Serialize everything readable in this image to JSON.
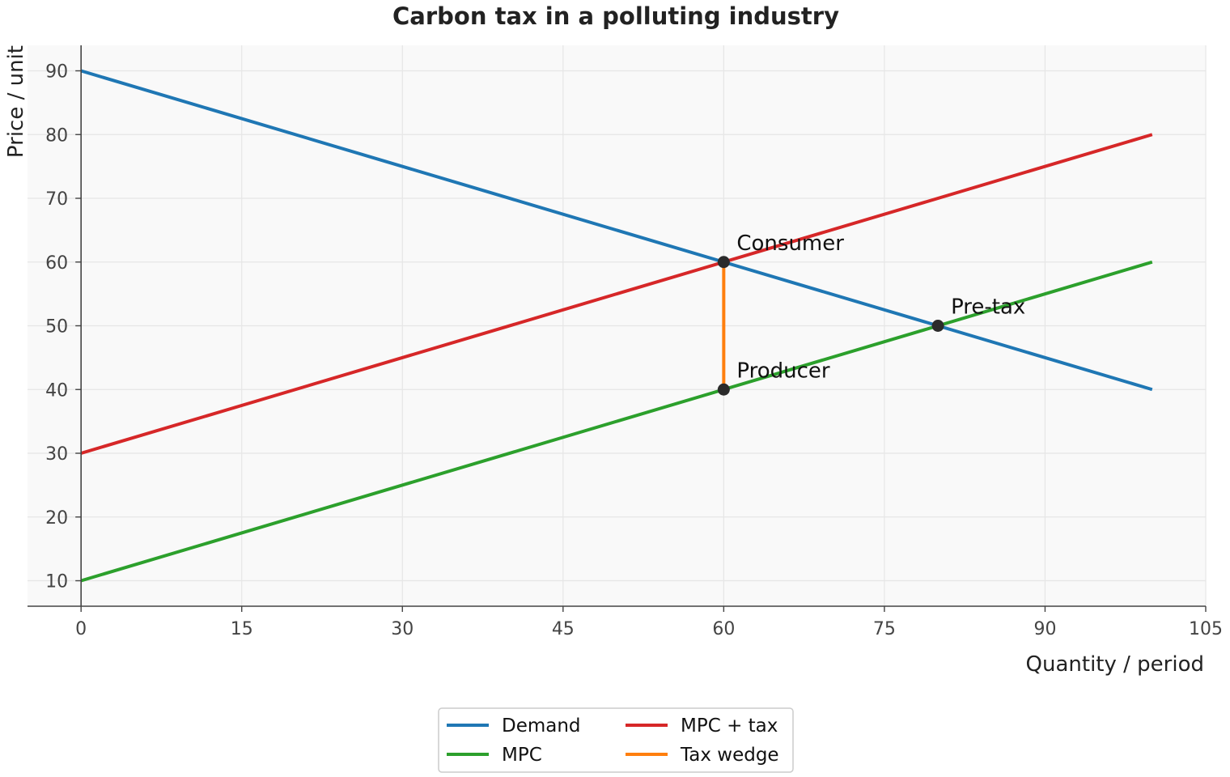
{
  "chart_data": {
    "type": "line",
    "title": "Carbon tax in a polluting industry",
    "xlabel": "Quantity / period",
    "ylabel": "Price / unit",
    "xlim": [
      -5,
      105
    ],
    "ylim": [
      6,
      94
    ],
    "xticks": [
      0,
      15,
      30,
      45,
      60,
      75,
      90,
      105
    ],
    "yticks": [
      10,
      20,
      30,
      40,
      50,
      60,
      70,
      80,
      90
    ],
    "grid": true,
    "legend_placement": "bottom-center",
    "series": [
      {
        "name": "Demand",
        "color": "#1f77b4",
        "x": [
          0,
          100
        ],
        "y": [
          90,
          40
        ]
      },
      {
        "name": "MPC",
        "color": "#2ca02c",
        "x": [
          0,
          100
        ],
        "y": [
          10,
          60
        ]
      },
      {
        "name": "MPC + tax",
        "color": "#d62728",
        "x": [
          0,
          100
        ],
        "y": [
          30,
          80
        ]
      },
      {
        "name": "Tax wedge",
        "color": "#ff7f0e",
        "x": [
          60,
          60
        ],
        "y": [
          40,
          60
        ]
      }
    ],
    "legend_order": [
      0,
      2,
      1,
      3
    ],
    "points": [
      {
        "label": "Consumer",
        "x": 60,
        "y": 60
      },
      {
        "label": "Producer",
        "x": 60,
        "y": 40
      },
      {
        "label": "Pre-tax",
        "x": 80,
        "y": 50
      }
    ],
    "point_color": "#2b2b2b",
    "plot_background": "#f9f9f9",
    "grid_color": "#e6e6e6"
  }
}
